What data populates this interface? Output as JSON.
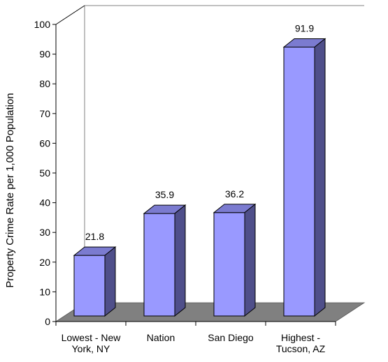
{
  "chart_data": {
    "type": "bar",
    "title": "",
    "xlabel": "",
    "ylabel": "Property Crime Rate per 1,000 Population",
    "ylim": [
      0,
      100
    ],
    "yticks": [
      "0",
      "10",
      "20",
      "30",
      "40",
      "50",
      "60",
      "70",
      "80",
      "90",
      "100"
    ],
    "categories": [
      [
        "Lowest - New",
        "York, NY"
      ],
      [
        "Nation"
      ],
      [
        "San Diego"
      ],
      [
        "Highest -",
        "Tucson, AZ"
      ]
    ],
    "values": [
      21.8,
      35.9,
      36.2,
      91.9
    ],
    "value_labels": [
      "21.8",
      "35.9",
      "36.2",
      "91.9"
    ],
    "style": "3d",
    "grid": false,
    "legend": "none"
  },
  "colors": {
    "bar_front": "#9999ff",
    "bar_top": "#7b7bd0",
    "bar_side": "#4f4f8a",
    "floor": "#808080",
    "axis": "#000000",
    "back_wall": "#808080"
  }
}
